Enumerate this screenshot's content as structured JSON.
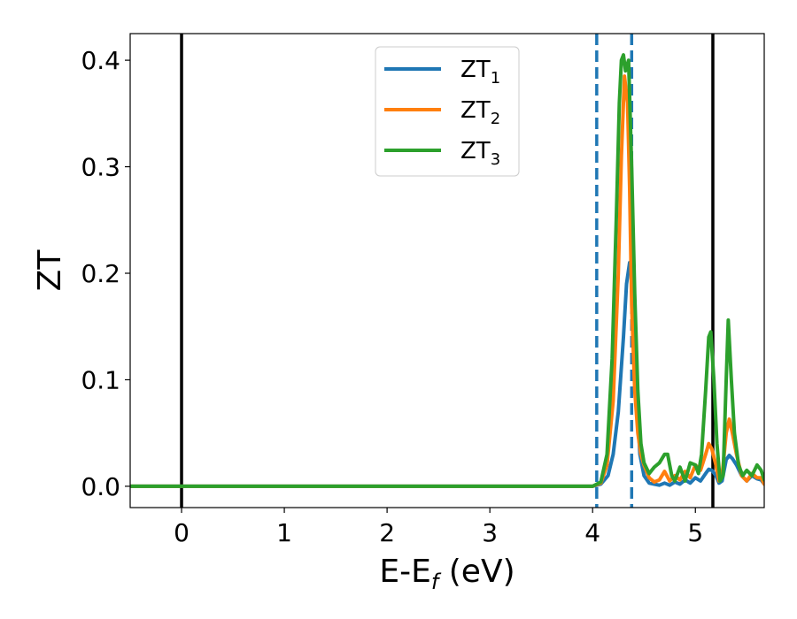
{
  "chart_data": {
    "type": "line",
    "xlabel": {
      "main": "E-E",
      "sub": "f",
      "tail": " (eV)"
    },
    "ylabel": "ZT",
    "xlim": [
      -0.5,
      5.67
    ],
    "ylim": [
      -0.02,
      0.425
    ],
    "xticks": [
      0,
      1,
      2,
      3,
      4,
      5
    ],
    "yticks": [
      0.0,
      0.1,
      0.2,
      0.3,
      0.4
    ],
    "ytick_labels": [
      "0.0",
      "0.1",
      "0.2",
      "0.3",
      "0.4"
    ],
    "grid": false,
    "legend": {
      "position": "top-center"
    },
    "vlines": [
      {
        "x": 0.0,
        "style": "solid",
        "color": "#000000"
      },
      {
        "x": 5.17,
        "style": "solid",
        "color": "#000000"
      },
      {
        "x": 4.04,
        "style": "dashed",
        "color": "#1f77b4"
      },
      {
        "x": 4.38,
        "style": "dashed",
        "color": "#1f77b4"
      }
    ],
    "series": [
      {
        "name": "ZT",
        "sub": "1",
        "color": "#1f77b4",
        "x": [
          -0.5,
          4.0,
          4.08,
          4.15,
          4.2,
          4.25,
          4.3,
          4.33,
          4.36,
          4.38,
          4.4,
          4.43,
          4.46,
          4.5,
          4.55,
          4.6,
          4.65,
          4.7,
          4.75,
          4.8,
          4.85,
          4.9,
          4.95,
          5.0,
          5.05,
          5.1,
          5.13,
          5.16,
          5.2,
          5.23,
          5.26,
          5.3,
          5.33,
          5.36,
          5.4,
          5.45,
          5.5,
          5.55,
          5.6,
          5.64,
          5.67
        ],
        "y": [
          0.0,
          0.0,
          0.002,
          0.01,
          0.03,
          0.07,
          0.14,
          0.19,
          0.21,
          0.2,
          0.15,
          0.08,
          0.03,
          0.01,
          0.003,
          0.002,
          0.001,
          0.003,
          0.001,
          0.004,
          0.002,
          0.006,
          0.003,
          0.008,
          0.005,
          0.012,
          0.016,
          0.015,
          0.01,
          0.003,
          0.005,
          0.025,
          0.029,
          0.026,
          0.02,
          0.01,
          0.005,
          0.01,
          0.007,
          0.006,
          0.002
        ]
      },
      {
        "name": "ZT",
        "sub": "2",
        "color": "#ff7f0e",
        "x": [
          -0.5,
          4.0,
          4.08,
          4.14,
          4.2,
          4.25,
          4.28,
          4.31,
          4.34,
          4.36,
          4.38,
          4.41,
          4.44,
          4.47,
          4.5,
          4.55,
          4.6,
          4.65,
          4.7,
          4.75,
          4.8,
          4.85,
          4.9,
          4.95,
          5.0,
          5.05,
          5.1,
          5.13,
          5.16,
          5.2,
          5.23,
          5.26,
          5.3,
          5.33,
          5.36,
          5.4,
          5.45,
          5.5,
          5.55,
          5.6,
          5.64,
          5.67
        ],
        "y": [
          0.0,
          0.0,
          0.003,
          0.02,
          0.08,
          0.2,
          0.31,
          0.385,
          0.36,
          0.28,
          0.17,
          0.09,
          0.05,
          0.03,
          0.02,
          0.008,
          0.004,
          0.006,
          0.014,
          0.005,
          0.01,
          0.006,
          0.014,
          0.008,
          0.02,
          0.015,
          0.03,
          0.04,
          0.035,
          0.02,
          0.005,
          0.01,
          0.05,
          0.063,
          0.05,
          0.03,
          0.01,
          0.005,
          0.012,
          0.008,
          0.008,
          0.002
        ]
      },
      {
        "name": "ZT",
        "sub": "3",
        "color": "#2ca02c",
        "x": [
          -0.5,
          4.0,
          4.08,
          4.14,
          4.19,
          4.23,
          4.26,
          4.28,
          4.3,
          4.32,
          4.35,
          4.38,
          4.41,
          4.44,
          4.47,
          4.5,
          4.55,
          4.6,
          4.65,
          4.7,
          4.73,
          4.77,
          4.8,
          4.85,
          4.9,
          4.95,
          5.0,
          5.03,
          5.06,
          5.1,
          5.13,
          5.15,
          5.18,
          5.21,
          5.24,
          5.27,
          5.3,
          5.32,
          5.35,
          5.38,
          5.42,
          5.46,
          5.5,
          5.55,
          5.6,
          5.64,
          5.67
        ],
        "y": [
          0.0,
          0.0,
          0.004,
          0.03,
          0.12,
          0.25,
          0.36,
          0.4,
          0.405,
          0.39,
          0.4,
          0.3,
          0.18,
          0.09,
          0.04,
          0.022,
          0.012,
          0.018,
          0.022,
          0.03,
          0.03,
          0.01,
          0.005,
          0.018,
          0.005,
          0.022,
          0.02,
          0.012,
          0.03,
          0.09,
          0.14,
          0.145,
          0.1,
          0.04,
          0.005,
          0.01,
          0.1,
          0.156,
          0.1,
          0.05,
          0.02,
          0.01,
          0.015,
          0.01,
          0.02,
          0.015,
          0.006
        ]
      }
    ]
  }
}
